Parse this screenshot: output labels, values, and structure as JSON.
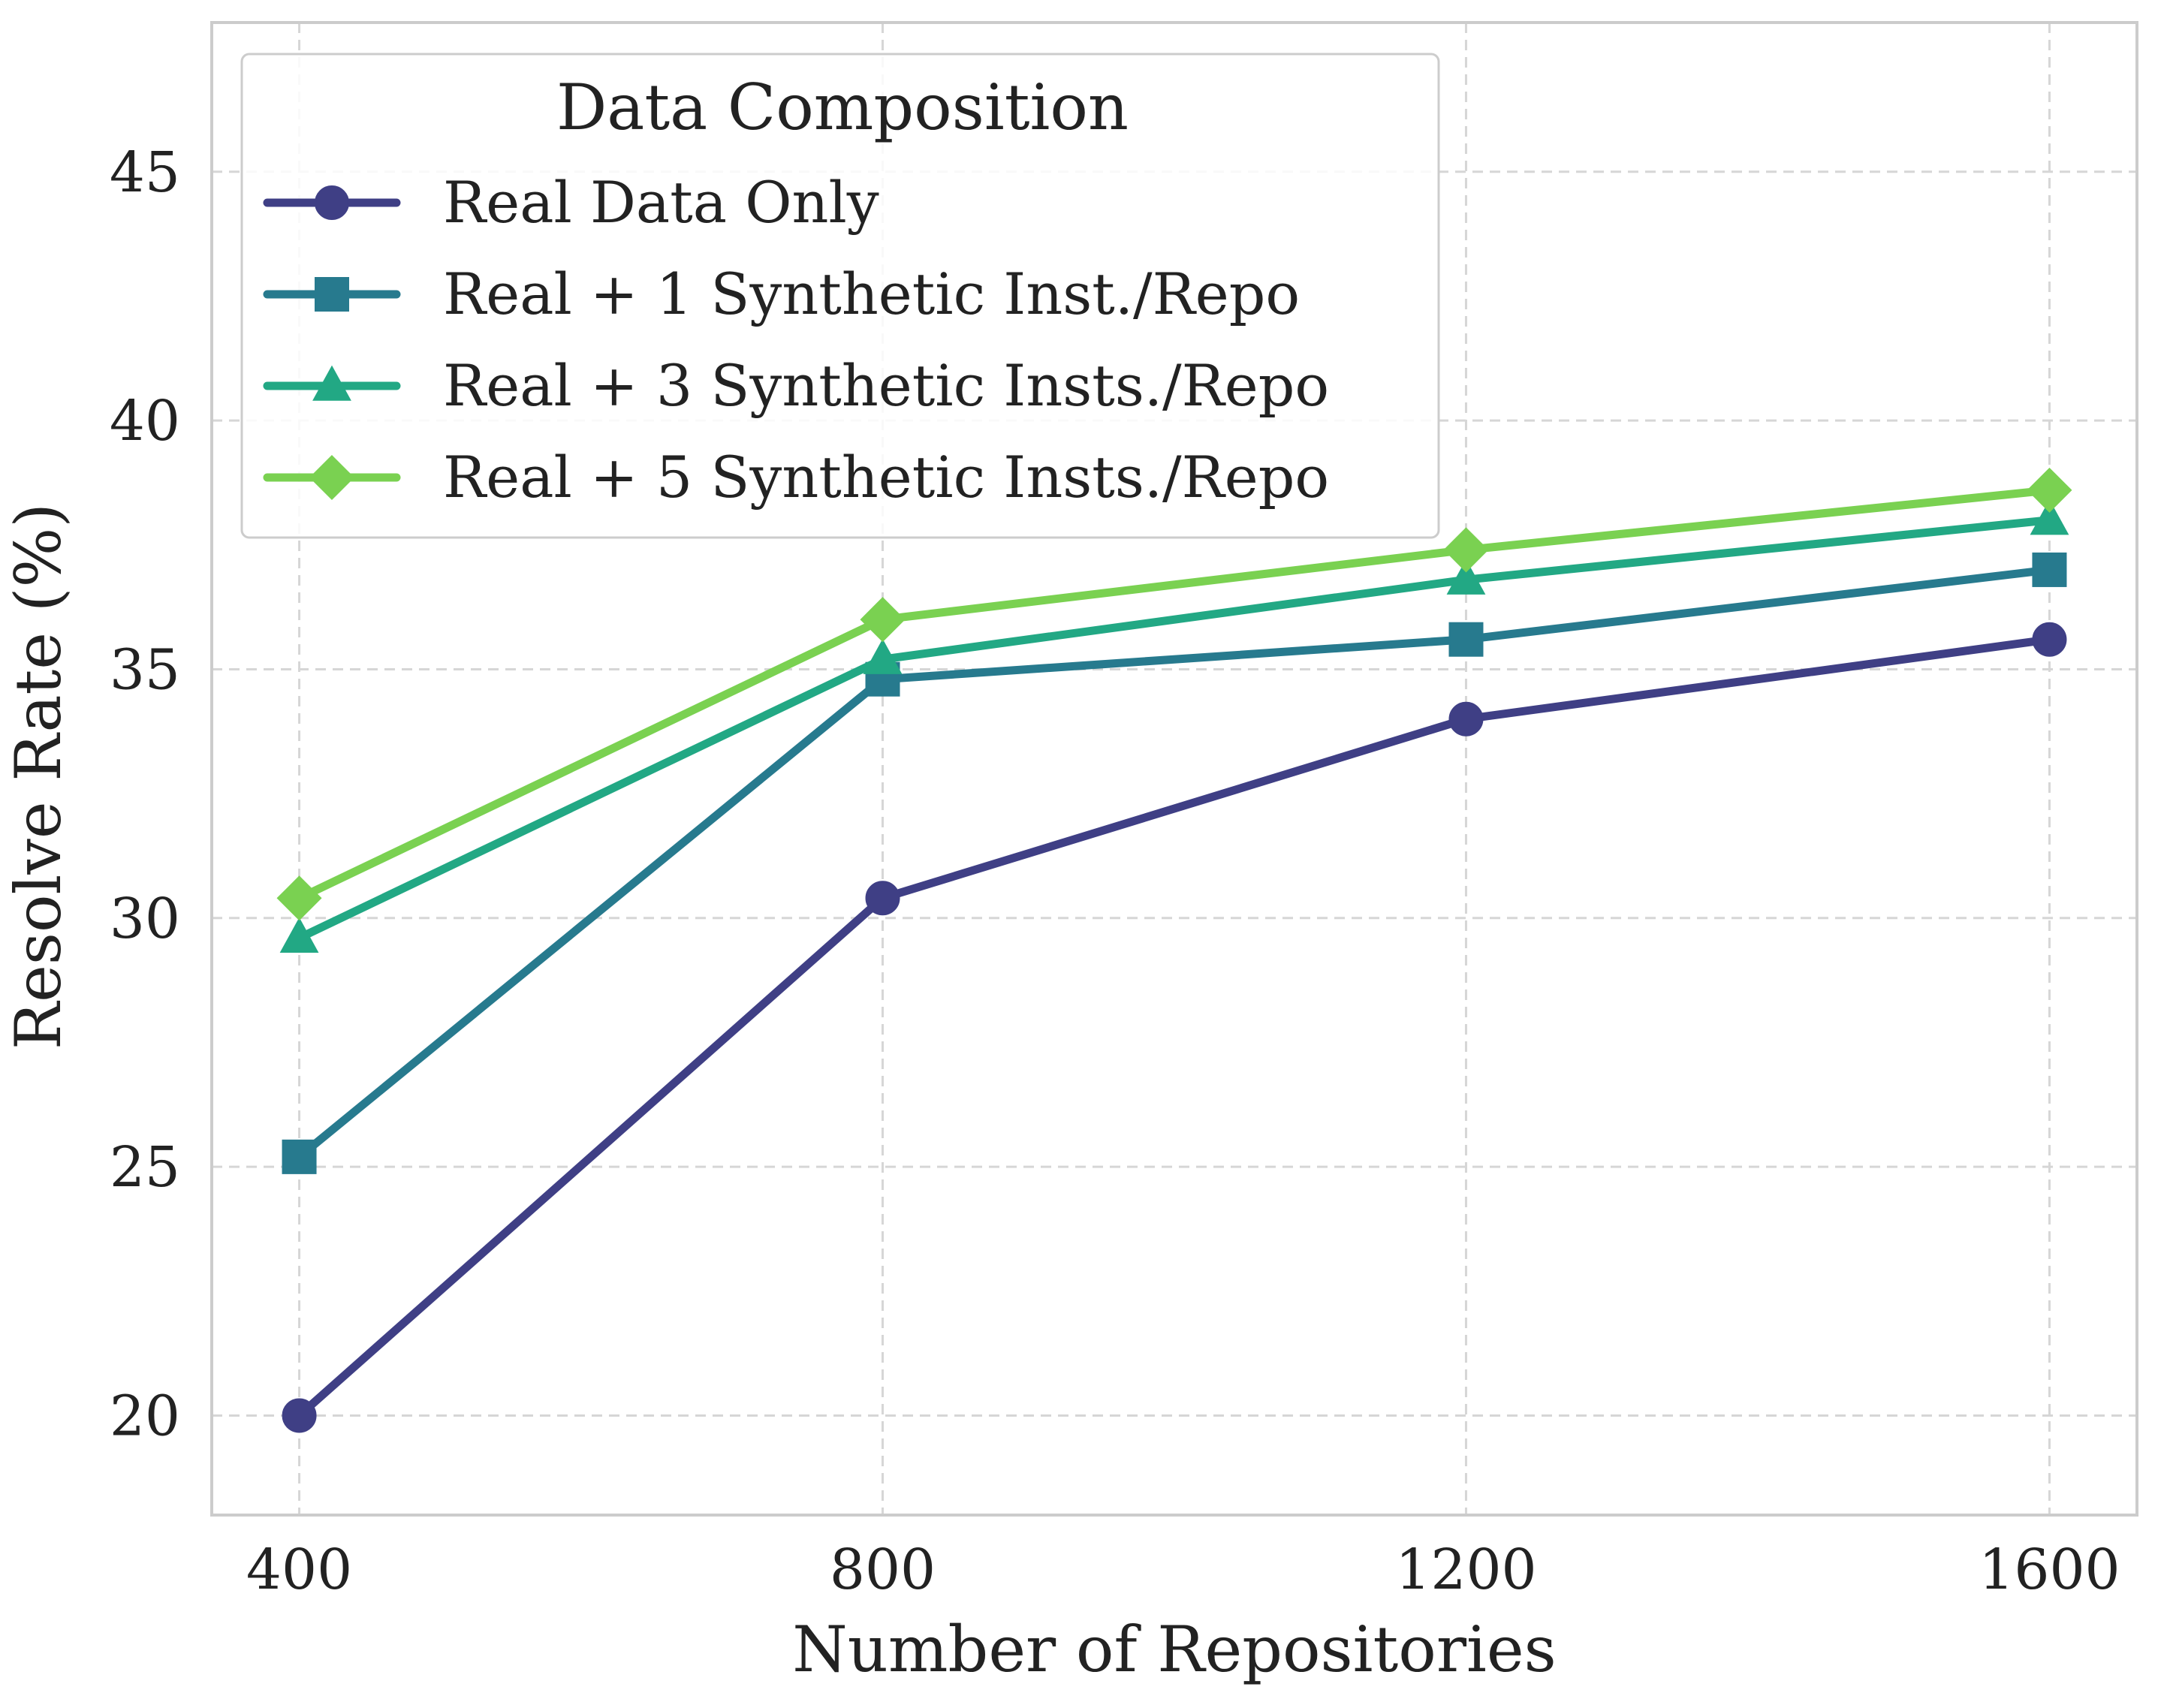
{
  "chart_data": {
    "type": "line",
    "xlabel": "Number of Repositories",
    "ylabel": "Resolve Rate (%)",
    "x": [
      400,
      800,
      1200,
      1600
    ],
    "x_tick_labels": [
      "400",
      "800",
      "1200",
      "1600"
    ],
    "xlim": [
      340,
      1660
    ],
    "ylim": [
      18,
      48
    ],
    "y_ticks": [
      20,
      25,
      30,
      35,
      40,
      45
    ],
    "grid": true,
    "legend": {
      "title": "Data Composition",
      "placement": "top-left"
    },
    "series": [
      {
        "name": "Real Data Only",
        "values": [
          20.0,
          30.4,
          34.0,
          35.6
        ],
        "color": "#3f3f85",
        "marker": "circle"
      },
      {
        "name": "Real + 1 Synthetic Inst./Repo",
        "values": [
          25.2,
          34.8,
          35.6,
          37.0
        ],
        "color": "#277a8e",
        "marker": "square"
      },
      {
        "name": "Real + 3 Synthetic Insts./Repo",
        "values": [
          29.6,
          35.2,
          36.8,
          38.0
        ],
        "color": "#22a884",
        "marker": "triangle"
      },
      {
        "name": "Real + 5 Synthetic Insts./Repo",
        "values": [
          30.4,
          36.0,
          37.4,
          38.6
        ],
        "color": "#7ad151",
        "marker": "diamond"
      }
    ]
  }
}
